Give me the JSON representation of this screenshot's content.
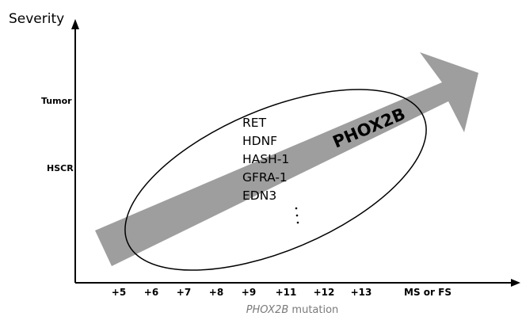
{
  "y_axis": {
    "title": "Severity",
    "levels": [
      "Tumor",
      "HSCR"
    ]
  },
  "x_axis": {
    "ticks": [
      "+5",
      "+6",
      "+7",
      "+8",
      "+9",
      "+11",
      "+12",
      "+13",
      "MS or FS"
    ],
    "label_gene": "PHOX2B",
    "label_rest": " mutation"
  },
  "arrow": {
    "label": "PHOX2B",
    "color": "#9e9e9e"
  },
  "genes": [
    "RET",
    "HDNF",
    "HASH-1",
    "GFRA-1",
    "EDN3"
  ],
  "genes_more": "..."
}
